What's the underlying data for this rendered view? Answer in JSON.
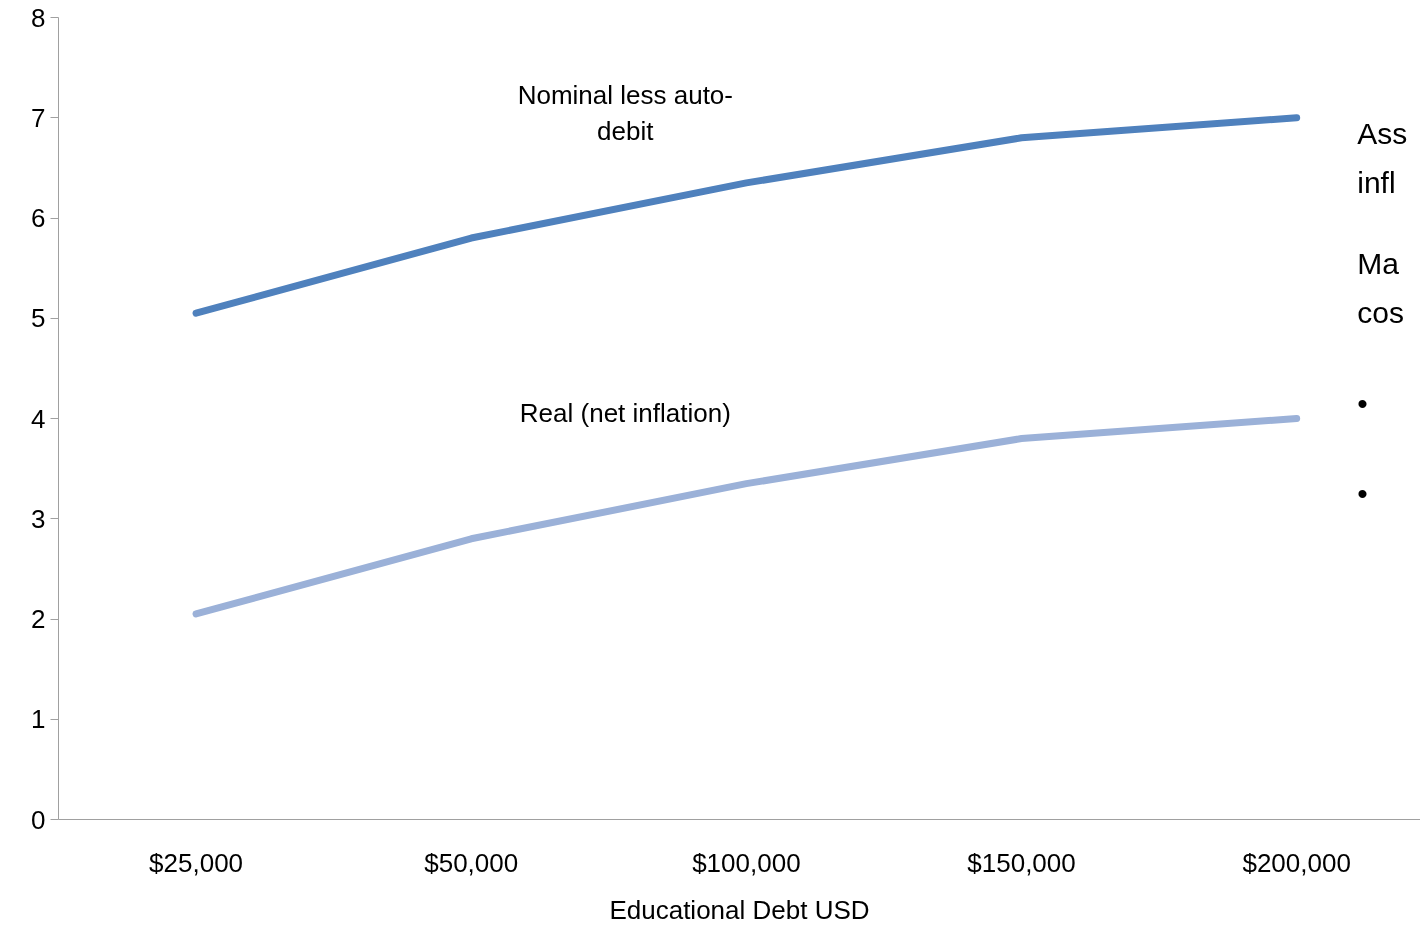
{
  "chart_data": {
    "type": "line",
    "xlabel": "Educational Debt USD",
    "categories": [
      "$25,000",
      "$50,000",
      "$100,000",
      "$150,000",
      "$200,000"
    ],
    "series": [
      {
        "name": "Nominal less auto-\ndebit",
        "color": "#4f81bd",
        "values": [
          5.05,
          5.8,
          6.35,
          6.8,
          7.0
        ]
      },
      {
        "name": "Real (net inflation)",
        "color": "#9bb1d8",
        "values": [
          2.05,
          2.8,
          3.35,
          3.8,
          4.0
        ]
      }
    ],
    "ylim": [
      0,
      8
    ],
    "yticks": [
      0,
      1,
      2,
      3,
      4,
      5,
      6,
      7,
      8
    ],
    "grid": false,
    "marker": "none",
    "line_style": "solid",
    "annotations": [
      "Ass\ninfl",
      "Ma\ncos",
      "•",
      "•"
    ]
  }
}
